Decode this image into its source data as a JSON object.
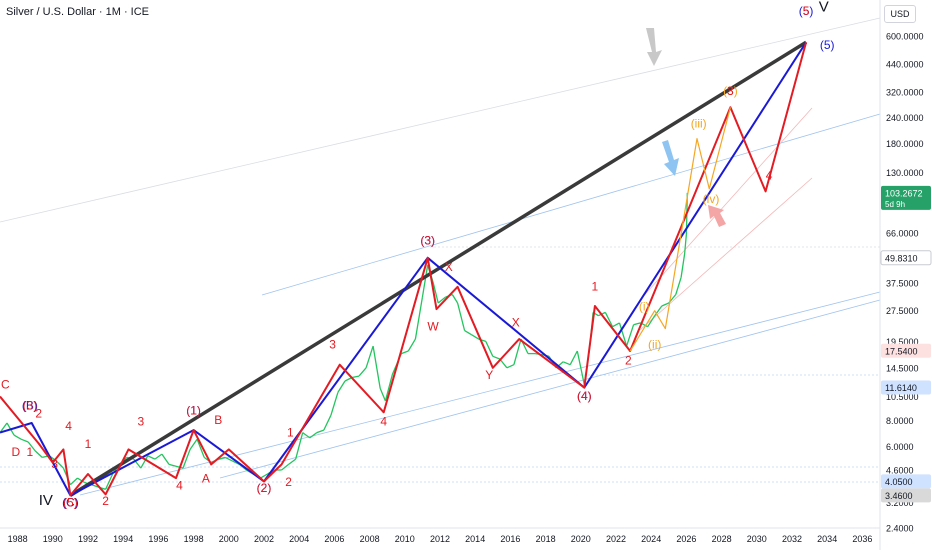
{
  "header": {
    "title": "Silver / U.S. Dollar · 1M · ICE",
    "currency": "USD"
  },
  "colors": {
    "price_bar": "#22c55e",
    "wave_red": "#e31b23",
    "wave_blue": "#1a1ad6",
    "trend_black": "#3a3a3a",
    "wave_orange": "#f5a623",
    "channel": "#9fc3ee",
    "arrow_gray": "#c8c8c8",
    "arrow_blue": "#8ec4f2",
    "arrow_pink": "#f4a6a6",
    "last_price_bg": "#26a269",
    "tag_blue_bg": "#cfe2ff",
    "tag_pink_bg": "#fde0e0",
    "tag_gray_bg": "#d9d9d9",
    "axis_text": "#131722"
  },
  "chart_data": {
    "type": "line",
    "title": "Silver / U.S. Dollar · 1M · ICE",
    "xlabel": "",
    "ylabel": "",
    "scale": "log",
    "xlim": [
      1987,
      2037
    ],
    "ylim": [
      2.4,
      900
    ],
    "x_ticks": [
      "1988",
      "1990",
      "1992",
      "1994",
      "1996",
      "1998",
      "2000",
      "2002",
      "2004",
      "2006",
      "2008",
      "2010",
      "2012",
      "2014",
      "2016",
      "2018",
      "2020",
      "2022",
      "2024",
      "2026",
      "2028",
      "2030",
      "2032",
      "2034",
      "2036"
    ],
    "y_ticks": [
      {
        "value": 600,
        "label": "600.0000"
      },
      {
        "value": 440,
        "label": "440.0000"
      },
      {
        "value": 320,
        "label": "320.0000"
      },
      {
        "value": 240,
        "label": "240.0000"
      },
      {
        "value": 180,
        "label": "180.0000"
      },
      {
        "value": 130,
        "label": "130.0000"
      },
      {
        "value": 66,
        "label": "66.0000"
      },
      {
        "value": 37.5,
        "label": "37.5000"
      },
      {
        "value": 27.5,
        "label": "27.5000"
      },
      {
        "value": 19.5,
        "label": "19.5000"
      },
      {
        "value": 14.5,
        "label": "14.5000"
      },
      {
        "value": 10.5,
        "label": "10.5000"
      },
      {
        "value": 8.0,
        "label": "8.0000"
      },
      {
        "value": 6.0,
        "label": "6.0000"
      },
      {
        "value": 4.6,
        "label": "4.6000"
      },
      {
        "value": 3.2,
        "label": "3.2000"
      },
      {
        "value": 2.4,
        "label": "2.4000"
      }
    ],
    "price_tags": [
      {
        "value": 103.2672,
        "label": "103.2672",
        "sub": "5d 9h",
        "style": "last"
      },
      {
        "value": 49.831,
        "label": "49.8310",
        "style": "plain"
      },
      {
        "value": 17.54,
        "label": "17.5400",
        "style": "pink"
      },
      {
        "value": 11.614,
        "label": "11.6140",
        "style": "blue"
      },
      {
        "value": 4.05,
        "label": "4.0500",
        "style": "blue"
      },
      {
        "value": 3.46,
        "label": "3.4600",
        "style": "gray"
      }
    ],
    "price_series": [
      [
        1987,
        7.0
      ],
      [
        1987.4,
        7.8
      ],
      [
        1987.8,
        6.8
      ],
      [
        1988.2,
        6.5
      ],
      [
        1988.6,
        6.3
      ],
      [
        1989.0,
        5.7
      ],
      [
        1989.4,
        5.3
      ],
      [
        1989.8,
        5.4
      ],
      [
        1990.2,
        5.1
      ],
      [
        1990.6,
        4.7
      ],
      [
        1991.0,
        3.9
      ],
      [
        1991.4,
        4.2
      ],
      [
        1991.8,
        4.0
      ],
      [
        1992.2,
        3.9
      ],
      [
        1992.6,
        3.8
      ],
      [
        1993.0,
        3.7
      ],
      [
        1993.4,
        4.4
      ],
      [
        1993.8,
        4.9
      ],
      [
        1994.2,
        5.3
      ],
      [
        1994.6,
        5.2
      ],
      [
        1995.0,
        4.7
      ],
      [
        1995.4,
        5.4
      ],
      [
        1995.8,
        5.2
      ],
      [
        1996.2,
        5.5
      ],
      [
        1996.6,
        4.9
      ],
      [
        1997.0,
        4.8
      ],
      [
        1997.4,
        4.7
      ],
      [
        1997.8,
        5.8
      ],
      [
        1998.2,
        6.5
      ],
      [
        1998.6,
        5.3
      ],
      [
        1999.0,
        5.0
      ],
      [
        1999.4,
        5.2
      ],
      [
        1999.8,
        5.3
      ],
      [
        2000.2,
        5.1
      ],
      [
        2000.6,
        4.9
      ],
      [
        2001.0,
        4.6
      ],
      [
        2001.4,
        4.4
      ],
      [
        2001.8,
        4.2
      ],
      [
        2002.2,
        4.4
      ],
      [
        2002.6,
        4.6
      ],
      [
        2003.0,
        4.6
      ],
      [
        2003.4,
        4.9
      ],
      [
        2003.8,
        5.2
      ],
      [
        2004.2,
        7.0
      ],
      [
        2004.6,
        6.6
      ],
      [
        2005.0,
        7.0
      ],
      [
        2005.4,
        7.2
      ],
      [
        2005.8,
        8.5
      ],
      [
        2006.2,
        11.0
      ],
      [
        2006.6,
        12.5
      ],
      [
        2007.0,
        13.0
      ],
      [
        2007.4,
        13.2
      ],
      [
        2007.8,
        14.5
      ],
      [
        2008.2,
        18.5
      ],
      [
        2008.6,
        11.5
      ],
      [
        2008.9,
        10.0
      ],
      [
        2009.3,
        13.5
      ],
      [
        2009.8,
        17.0
      ],
      [
        2010.2,
        17.5
      ],
      [
        2010.6,
        20.0
      ],
      [
        2011.0,
        32.0
      ],
      [
        2011.3,
        46.0
      ],
      [
        2011.6,
        38.0
      ],
      [
        2011.9,
        30.0
      ],
      [
        2012.3,
        32.0
      ],
      [
        2012.7,
        33.0
      ],
      [
        2013.0,
        30.0
      ],
      [
        2013.4,
        22.0
      ],
      [
        2013.8,
        21.0
      ],
      [
        2014.2,
        20.0
      ],
      [
        2014.6,
        19.5
      ],
      [
        2015.0,
        16.5
      ],
      [
        2015.4,
        16.0
      ],
      [
        2015.8,
        14.5
      ],
      [
        2016.2,
        15.0
      ],
      [
        2016.6,
        20.0
      ],
      [
        2017.0,
        17.0
      ],
      [
        2017.4,
        17.0
      ],
      [
        2017.8,
        16.8
      ],
      [
        2018.2,
        16.5
      ],
      [
        2018.6,
        14.5
      ],
      [
        2019.0,
        15.5
      ],
      [
        2019.4,
        15.0
      ],
      [
        2019.8,
        17.5
      ],
      [
        2020.2,
        12.0
      ],
      [
        2020.5,
        18.0
      ],
      [
        2020.7,
        27.0
      ],
      [
        2021.0,
        26.0
      ],
      [
        2021.4,
        27.0
      ],
      [
        2021.8,
        23.0
      ],
      [
        2022.2,
        24.0
      ],
      [
        2022.6,
        18.5
      ],
      [
        2023.0,
        23.5
      ],
      [
        2023.4,
        24.0
      ],
      [
        2023.8,
        23.0
      ],
      [
        2024.2,
        26.0
      ],
      [
        2024.6,
        29.0
      ],
      [
        2025.0,
        30.0
      ],
      [
        2025.4,
        33.0
      ],
      [
        2025.7,
        40.0
      ],
      [
        2025.9,
        52.0
      ],
      [
        2026.0,
        65.0
      ],
      [
        2026.05,
        103.27
      ]
    ],
    "lines": [
      {
        "name": "black-trend",
        "color": "#3a3a3a",
        "points": [
          [
            1991,
            3.46
          ],
          [
            2032.8,
            560
          ]
        ]
      },
      {
        "name": "blue-wave-path",
        "color": "#1a1ad6",
        "points": [
          [
            1987,
            7.0
          ],
          [
            1988.8,
            7.8
          ],
          [
            1991,
            3.46
          ],
          [
            1998,
            7.2
          ],
          [
            2002,
            4.05
          ],
          [
            2011.3,
            49.8
          ],
          [
            2020.2,
            11.6
          ],
          [
            2032.8,
            560
          ]
        ]
      },
      {
        "name": "red-wave-path",
        "color": "#e31b23",
        "points": [
          [
            1987,
            10.5
          ],
          [
            1989.2,
            6.2
          ],
          [
            1990.0,
            5.0
          ],
          [
            1990.6,
            5.8
          ],
          [
            1991,
            3.46
          ],
          [
            1992,
            4.4
          ],
          [
            1993,
            3.5
          ],
          [
            1994.3,
            5.8
          ],
          [
            1997,
            4.2
          ],
          [
            1998,
            7.2
          ],
          [
            1999,
            4.9
          ],
          [
            2000,
            5.8
          ],
          [
            2002,
            4.05
          ],
          [
            2003,
            4.9
          ],
          [
            2006.3,
            15.0
          ],
          [
            2008.8,
            8.8
          ],
          [
            2011.3,
            49.8
          ],
          [
            2011.8,
            28.0
          ],
          [
            2013,
            36.0
          ],
          [
            2015,
            14.5
          ],
          [
            2016.5,
            20.0
          ],
          [
            2020.2,
            11.6
          ],
          [
            2020.8,
            29.0
          ],
          [
            2022.8,
            17.5
          ],
          [
            2028.5,
            270
          ],
          [
            2030.5,
            105
          ],
          [
            2032.8,
            560
          ]
        ]
      },
      {
        "name": "orange-subwave-path",
        "color": "#f5a623",
        "points": [
          [
            2022.8,
            17.5
          ],
          [
            2024.2,
            27.5
          ],
          [
            2024.8,
            22.5
          ],
          [
            2026.6,
            190
          ],
          [
            2027.3,
            108
          ],
          [
            2028.5,
            270
          ]
        ]
      }
    ],
    "annotations": [
      {
        "text": "C",
        "x": 1987.3,
        "y": 11.5,
        "color": "#e31b23"
      },
      {
        "text": "(B)",
        "x": 1988.7,
        "y": 9.1,
        "color": "#1a1ad6"
      },
      {
        "text": "(3)",
        "x": 1988.7,
        "y": 9.1,
        "color": "#e31b23"
      },
      {
        "text": "2",
        "x": 1989.2,
        "y": 8.3,
        "color": "#e31b23"
      },
      {
        "text": "D",
        "x": 1987.9,
        "y": 5.4,
        "color": "#e31b23"
      },
      {
        "text": "1",
        "x": 1988.7,
        "y": 5.4,
        "color": "#e31b23"
      },
      {
        "text": "4",
        "x": 1990.9,
        "y": 7.2,
        "color": "#e31b23"
      },
      {
        "text": "3",
        "x": 1990.1,
        "y": 4.7,
        "color": "#e31b23"
      },
      {
        "text": "1",
        "x": 1992.0,
        "y": 5.9,
        "color": "#e31b23"
      },
      {
        "text": "(C)",
        "x": 1991.0,
        "y": 3.05,
        "color": "#1a1ad6"
      },
      {
        "text": "(5)",
        "x": 1991.0,
        "y": 3.05,
        "color": "#e31b23"
      },
      {
        "text": "IV",
        "x": 1989.6,
        "y": 3.1,
        "color": "#131722"
      },
      {
        "text": "2",
        "x": 1993.0,
        "y": 3.1,
        "color": "#e31b23"
      },
      {
        "text": "3",
        "x": 1995.0,
        "y": 7.6,
        "color": "#e31b23"
      },
      {
        "text": "(1)",
        "x": 1998.0,
        "y": 8.6,
        "color": "#1a1ad6"
      },
      {
        "text": "(1)",
        "x": 1998.0,
        "y": 8.6,
        "color": "#e31b23"
      },
      {
        "text": "B",
        "x": 1999.4,
        "y": 7.7,
        "color": "#e31b23"
      },
      {
        "text": "4",
        "x": 1997.2,
        "y": 3.7,
        "color": "#e31b23"
      },
      {
        "text": "A",
        "x": 1998.7,
        "y": 4.0,
        "color": "#e31b23"
      },
      {
        "text": "1",
        "x": 2003.5,
        "y": 6.7,
        "color": "#e31b23"
      },
      {
        "text": "(2)",
        "x": 2002.0,
        "y": 3.6,
        "color": "#1a1ad6"
      },
      {
        "text": "(2)",
        "x": 2002.0,
        "y": 3.6,
        "color": "#e31b23"
      },
      {
        "text": "2",
        "x": 2003.4,
        "y": 3.85,
        "color": "#e31b23"
      },
      {
        "text": "3",
        "x": 2005.9,
        "y": 18.0,
        "color": "#e31b23"
      },
      {
        "text": "4",
        "x": 2008.8,
        "y": 7.6,
        "color": "#e31b23"
      },
      {
        "text": "(3)",
        "x": 2011.3,
        "y": 58.0,
        "color": "#1a1ad6"
      },
      {
        "text": "(3)",
        "x": 2011.3,
        "y": 58.0,
        "color": "#e31b23"
      },
      {
        "text": "X",
        "x": 2012.5,
        "y": 43.0,
        "color": "#e31b23"
      },
      {
        "text": "W",
        "x": 2011.6,
        "y": 22.0,
        "color": "#e31b23"
      },
      {
        "text": "Y",
        "x": 2014.8,
        "y": 12.8,
        "color": "#e31b23"
      },
      {
        "text": "X",
        "x": 2016.3,
        "y": 23.0,
        "color": "#e31b23"
      },
      {
        "text": "(4)",
        "x": 2020.2,
        "y": 10.1,
        "color": "#1a1ad6"
      },
      {
        "text": "(4)",
        "x": 2020.2,
        "y": 10.1,
        "color": "#e31b23"
      },
      {
        "text": "1",
        "x": 2020.8,
        "y": 34.5,
        "color": "#e31b23"
      },
      {
        "text": "2",
        "x": 2022.7,
        "y": 15.0,
        "color": "#e31b23"
      },
      {
        "text": "(i)",
        "x": 2023.6,
        "y": 27.5,
        "color": "#f5a623"
      },
      {
        "text": "(ii)",
        "x": 2024.2,
        "y": 18.0,
        "color": "#f5a623"
      },
      {
        "text": "(iii)",
        "x": 2026.7,
        "y": 215.0,
        "color": "#f5a623"
      },
      {
        "text": "(iv)",
        "x": 2027.4,
        "y": 92.0,
        "color": "#f5a623"
      },
      {
        "text": "(3)",
        "x": 2028.5,
        "y": 310.0,
        "color": "#f5a623"
      },
      {
        "text": "3",
        "x": 2028.5,
        "y": 310.0,
        "color": "#e31b23"
      },
      {
        "text": "4",
        "x": 2030.7,
        "y": 120.0,
        "color": "#e31b23"
      },
      {
        "text": "(5)",
        "x": 2032.8,
        "y": 760.0,
        "color": "#1a1ad6"
      },
      {
        "text": "5",
        "x": 2032.8,
        "y": 760.0,
        "color": "#e31b23"
      },
      {
        "text": "V",
        "x": 2033.8,
        "y": 790.0,
        "color": "#131722"
      },
      {
        "text": "(5)",
        "x": 2034.0,
        "y": 520.0,
        "color": "#1a1ad6"
      }
    ],
    "grid": false,
    "legend": "none"
  }
}
